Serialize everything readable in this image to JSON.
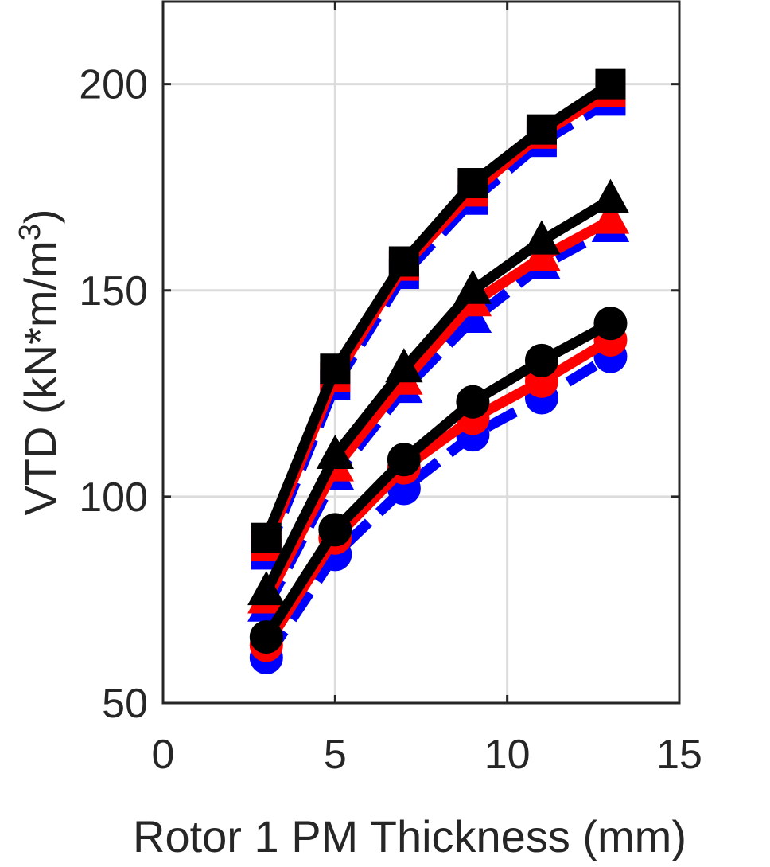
{
  "chart_data": {
    "type": "line",
    "title": "",
    "xlabel": "Rotor 1 PM Thickness (mm)",
    "ylabel": "VTD (kN*m/m",
    "ylabel_superscript": "3",
    "ylabel_close": ")",
    "xlim": [
      0,
      15
    ],
    "ylim": [
      50,
      220
    ],
    "xticks": [
      0,
      5,
      10,
      15
    ],
    "yticks": [
      50,
      100,
      150,
      200
    ],
    "grid": true,
    "x": [
      3,
      5,
      7,
      9,
      11,
      13
    ],
    "series": [
      {
        "group": "square",
        "color": "#0000ff",
        "line": "dashed",
        "marker": "square",
        "values": [
          86,
          127,
          154,
          172,
          186,
          196
        ]
      },
      {
        "group": "square",
        "color": "#ff0000",
        "line": "solid",
        "marker": "square",
        "values": [
          88,
          129,
          156,
          174,
          188,
          198
        ]
      },
      {
        "group": "square",
        "color": "#000000",
        "line": "solid",
        "marker": "square",
        "values": [
          90,
          131,
          157,
          176,
          189,
          200
        ]
      },
      {
        "group": "triangle",
        "color": "#0000ff",
        "line": "dashed",
        "marker": "triangle",
        "values": [
          73,
          105,
          126,
          143,
          156,
          165
        ]
      },
      {
        "group": "triangle",
        "color": "#ff0000",
        "line": "solid",
        "marker": "triangle",
        "values": [
          75,
          107,
          128,
          147,
          158,
          167
        ]
      },
      {
        "group": "triangle",
        "color": "#000000",
        "line": "solid",
        "marker": "triangle",
        "values": [
          77,
          110,
          131,
          150,
          162,
          172
        ]
      },
      {
        "group": "circle",
        "color": "#0000ff",
        "line": "dashed",
        "marker": "circle",
        "values": [
          61,
          86,
          102,
          115,
          124,
          134
        ]
      },
      {
        "group": "circle",
        "color": "#ff0000",
        "line": "solid",
        "marker": "circle",
        "values": [
          64,
          90,
          107,
          119,
          128,
          138
        ]
      },
      {
        "group": "circle",
        "color": "#000000",
        "line": "solid",
        "marker": "circle",
        "values": [
          66,
          92,
          109,
          123,
          133,
          142
        ]
      }
    ]
  }
}
